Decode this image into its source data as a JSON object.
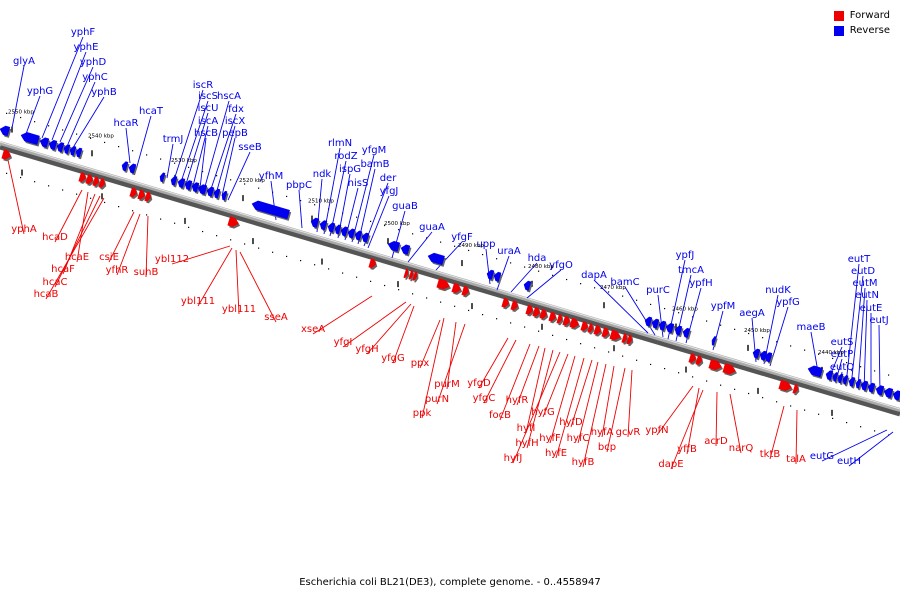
{
  "caption": "Escherichia coli BL21(DE3), complete genome. - 0..4558947",
  "legend": [
    {
      "label": "Forward",
      "color": "#ee0000"
    },
    {
      "label": "Reverse",
      "color": "#0000ee"
    }
  ],
  "colors": {
    "forward": "#ee0000",
    "reverse": "#0000ee",
    "backbone": "#888888"
  },
  "scale_labels": [
    "2550 kbp",
    "2540 kbp",
    "2530 kbp",
    "2520 kbp",
    "2510 kbp",
    "2500 kbp",
    "2490 kbp",
    "2480 kbp",
    "2470 kbp",
    "2460 kbp",
    "2450 kbp",
    "2440 kbp"
  ],
  "reverse_genes": [
    "glyA",
    "yphG",
    "yphF",
    "yphE",
    "yphD",
    "yphC",
    "yphB",
    "hcaR",
    "hcaT",
    "trmJ",
    "iscR",
    "iscS",
    "iscU",
    "iscA",
    "hscB",
    "hscA",
    "fdx",
    "iscX",
    "pepB",
    "sseB",
    "yfhM",
    "pbpC",
    "ndk",
    "rlmN",
    "rodZ",
    "ispG",
    "hisS",
    "yfgM",
    "bamB",
    "der",
    "yfgJ",
    "guaB",
    "guaA",
    "yfgF",
    "upp",
    "uraA",
    "hda",
    "yfgO",
    "dapA",
    "bamC",
    "purC",
    "ypfJ",
    "tmcA",
    "ypfH",
    "ypfM",
    "aegA",
    "nudK",
    "ypfG",
    "maeB",
    "eutS",
    "eutP",
    "eutQ",
    "eutT",
    "eutD",
    "eutM",
    "eutN",
    "eutE",
    "eutJ",
    "eutG",
    "eutH"
  ],
  "forward_genes": [
    "yphA",
    "hcaD",
    "hcaE",
    "hcaF",
    "hcaC",
    "hcaB",
    "csiE",
    "yfhR",
    "suhB",
    "ybl112",
    "ybl111",
    "ybl111",
    "sseA",
    "xseA",
    "yfgI",
    "yfgH",
    "yfgG",
    "ppx",
    "purM",
    "purN",
    "ppk",
    "yfgD",
    "yfgC",
    "focB",
    "hyfR",
    "hyfI",
    "hyfH",
    "hyfJ",
    "hyfG",
    "hyfF",
    "hyfE",
    "hyfD",
    "hyfC",
    "hyfB",
    "hyfA",
    "bcp",
    "gcvR",
    "ypfN",
    "yffB",
    "dapE",
    "acrD",
    "narQ",
    "tktB",
    "talA"
  ]
}
